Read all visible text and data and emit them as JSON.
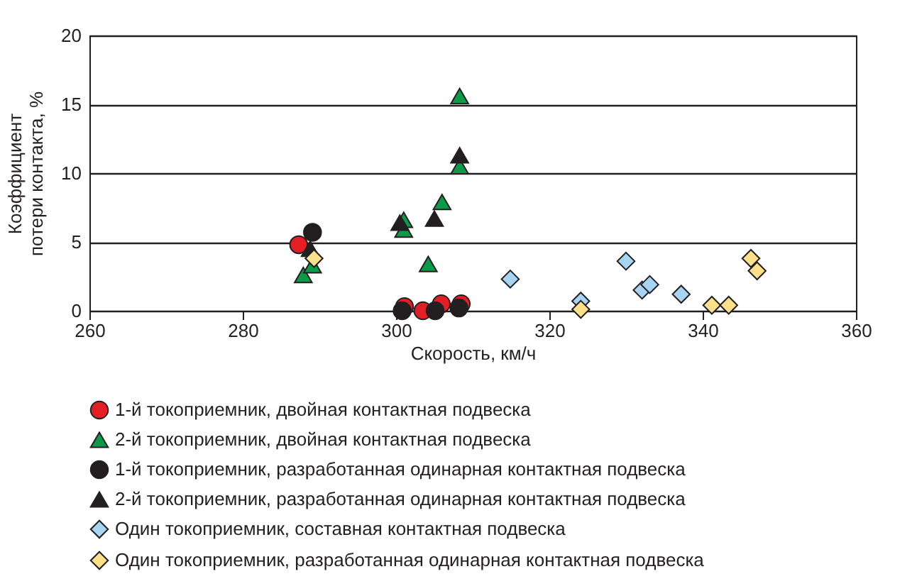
{
  "chart_data": {
    "type": "scatter",
    "xlabel": "Скорость, км/ч",
    "ylabel": "Коэффициент\nпотери контакта, %",
    "xlim": [
      260,
      360
    ],
    "xticks": [
      260,
      280,
      300,
      320,
      340,
      360
    ],
    "ylim": [
      0,
      20
    ],
    "yticks": [
      0,
      5,
      10,
      15,
      20
    ],
    "grid": "y",
    "legend": "bottom",
    "series": [
      {
        "name": "1-й токоприемник, двойная контактная подвеска",
        "color": "#e41e25",
        "marker": "circle",
        "x": [
          287.3,
          301.1,
          303.5,
          305.9,
          308.5
        ],
        "values": [
          4.8,
          0.3,
          0,
          0.5,
          0.5
        ]
      },
      {
        "name": "2-й токоприемник, двойная контактная подвеска",
        "color": "#0a9a48",
        "marker": "triangle",
        "x": [
          287.9,
          289.1,
          301.0,
          301.0,
          304.2,
          306.0,
          308.3,
          308.3
        ],
        "values": [
          2.6,
          3.3,
          6.6,
          5.9,
          3.4,
          7.9,
          15.6,
          10.5
        ]
      },
      {
        "name": "1-й токоприемник, разработанная одинарная контактная подвеска",
        "color": "#231f20",
        "marker": "circle",
        "x": [
          289.1,
          300.8,
          305.1,
          308.2
        ],
        "values": [
          5.7,
          0,
          0,
          0.2
        ]
      },
      {
        "name": "2-й токоприемник, разработанная одинарная контактная подвеска",
        "color": "#231f20",
        "marker": "triangle",
        "x": [
          288.8,
          300.5,
          305.0,
          308.3
        ],
        "values": [
          4.5,
          6.4,
          6.7,
          11.3
        ]
      },
      {
        "name": "Один токоприемник, составная контактная подвеска",
        "color": "#a6d4f2",
        "marker": "diamond",
        "x": [
          314.9,
          324.1,
          330.0,
          332.1,
          333.1,
          337.2
        ],
        "values": [
          2.3,
          0.7,
          3.6,
          1.5,
          1.9,
          1.2
        ]
      },
      {
        "name": "Один токоприемник, разработанная одинарная контактная подвеска",
        "color": "#fde08a",
        "marker": "diamond",
        "x": [
          289.3,
          324.1,
          341.2,
          343.4,
          346.3,
          347.1
        ],
        "values": [
          3.8,
          0.1,
          0.4,
          0.4,
          3.8,
          2.9
        ]
      }
    ]
  }
}
